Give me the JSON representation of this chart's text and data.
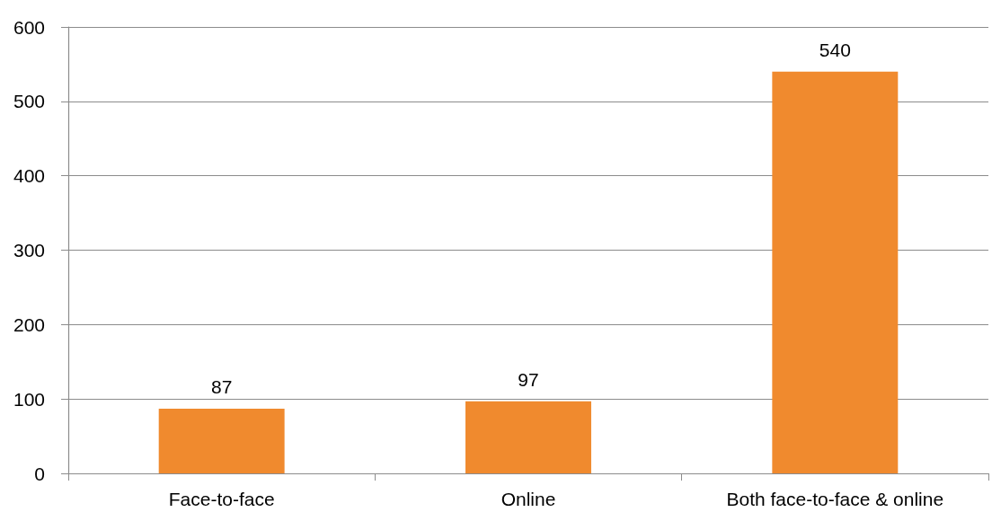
{
  "chart_data": {
    "type": "bar",
    "categories": [
      "Face-to-face",
      "Online",
      "Both face-to-face & online"
    ],
    "values": [
      87,
      97,
      540
    ],
    "color": "#f08a2e",
    "ylim": [
      0,
      600
    ],
    "yticks": [
      0,
      100,
      200,
      300,
      400,
      500,
      600
    ],
    "grid": "y",
    "data_labels": true
  }
}
